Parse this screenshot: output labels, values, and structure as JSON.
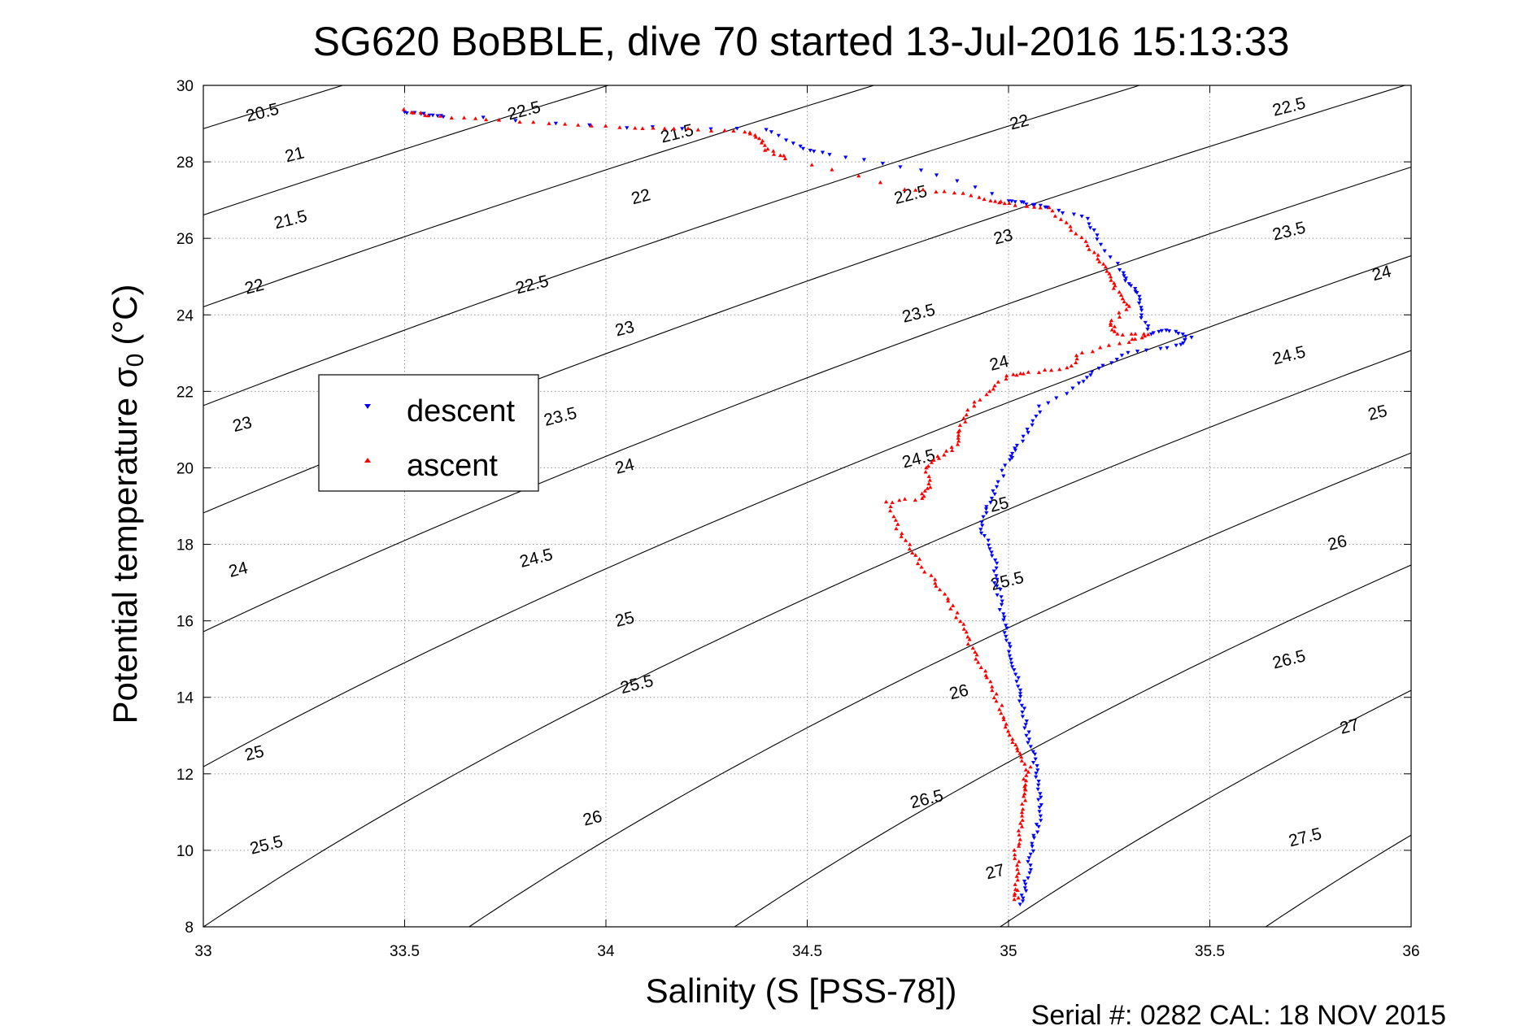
{
  "chart_data": {
    "type": "scatter",
    "title": "SG620 BoBBLE, dive 70 started 13-Jul-2016 15:13:33",
    "xlabel": "Salinity (S [PSS-78])",
    "ylabel_main": "Potential temperature σ",
    "ylabel_sub": "0",
    "ylabel_unit": "(°C)",
    "footer": "Serial #: 0282  CAL: 18 NOV 2015",
    "xlim": [
      33,
      36
    ],
    "ylim": [
      8,
      30
    ],
    "x_ticks": [
      33,
      33.5,
      34,
      34.5,
      35,
      35.5,
      36
    ],
    "x_tick_labels": [
      "33",
      "33.5",
      "34",
      "34.5",
      "35",
      "35.5",
      "36"
    ],
    "y_ticks": [
      8,
      10,
      12,
      14,
      16,
      18,
      20,
      22,
      24,
      26,
      28,
      30
    ],
    "y_tick_labels": [
      "8",
      "10",
      "12",
      "14",
      "16",
      "18",
      "20",
      "22",
      "24",
      "26",
      "28",
      "30"
    ],
    "grid": true,
    "legend_position": "left-middle",
    "density_contours": {
      "levels": [
        20.5,
        21,
        21.5,
        22,
        22.5,
        23,
        23.5,
        24,
        24.5,
        25,
        25.5,
        26,
        26.5,
        27,
        27.5
      ],
      "labels": [
        {
          "text": "20.5",
          "s": 33.15,
          "t": 29.15
        },
        {
          "text": "21",
          "s": 33.23,
          "t": 28.05
        },
        {
          "text": "21.5",
          "s": 33.22,
          "t": 26.35
        },
        {
          "text": "22",
          "s": 33.13,
          "t": 24.6
        },
        {
          "text": "22.5",
          "s": 33.8,
          "t": 29.2
        },
        {
          "text": "21.5",
          "s": 34.18,
          "t": 28.6
        },
        {
          "text": "22",
          "s": 34.09,
          "t": 26.95
        },
        {
          "text": "22.5",
          "s": 33.82,
          "t": 24.65
        },
        {
          "text": "23",
          "s": 33.1,
          "t": 21.0
        },
        {
          "text": "23",
          "s": 34.05,
          "t": 23.5
        },
        {
          "text": "23.5",
          "s": 33.89,
          "t": 21.2
        },
        {
          "text": "24",
          "s": 34.05,
          "t": 19.9
        },
        {
          "text": "24",
          "s": 33.09,
          "t": 17.2
        },
        {
          "text": "24.5",
          "s": 33.83,
          "t": 17.5
        },
        {
          "text": "25",
          "s": 34.05,
          "t": 15.9
        },
        {
          "text": "25.5",
          "s": 34.08,
          "t": 14.2
        },
        {
          "text": "25",
          "s": 33.13,
          "t": 12.4
        },
        {
          "text": "25.5",
          "s": 33.16,
          "t": 10.0
        },
        {
          "text": "26",
          "s": 33.97,
          "t": 10.7
        },
        {
          "text": "26.5",
          "s": 34.8,
          "t": 11.2
        },
        {
          "text": "27",
          "s": 34.97,
          "t": 9.3
        },
        {
          "text": "26",
          "s": 34.88,
          "t": 14.0
        },
        {
          "text": "25.5",
          "s": 35.0,
          "t": 16.9
        },
        {
          "text": "25",
          "s": 34.98,
          "t": 18.9
        },
        {
          "text": "24.5",
          "s": 34.78,
          "t": 20.1
        },
        {
          "text": "24",
          "s": 34.98,
          "t": 22.6
        },
        {
          "text": "23.5",
          "s": 34.78,
          "t": 23.9
        },
        {
          "text": "23",
          "s": 34.99,
          "t": 25.9
        },
        {
          "text": "22.5",
          "s": 34.76,
          "t": 27.0
        },
        {
          "text": "22",
          "s": 35.03,
          "t": 28.9
        },
        {
          "text": "22.5",
          "s": 35.7,
          "t": 29.3
        },
        {
          "text": "23.5",
          "s": 35.7,
          "t": 26.05
        },
        {
          "text": "24",
          "s": 35.93,
          "t": 24.95
        },
        {
          "text": "24.5",
          "s": 35.7,
          "t": 22.8
        },
        {
          "text": "25",
          "s": 35.92,
          "t": 21.3
        },
        {
          "text": "26",
          "s": 35.82,
          "t": 17.9
        },
        {
          "text": "26.5",
          "s": 35.7,
          "t": 14.85
        },
        {
          "text": "27",
          "s": 35.85,
          "t": 13.1
        },
        {
          "text": "27.5",
          "s": 35.74,
          "t": 10.2
        }
      ]
    },
    "series": [
      {
        "name": "descent",
        "color": "#0000ff",
        "marker": "triangle-down",
        "points": [
          [
            33.5,
            29.3
          ],
          [
            33.55,
            29.25
          ],
          [
            33.6,
            29.2
          ],
          [
            34.05,
            28.9
          ],
          [
            34.4,
            28.85
          ],
          [
            34.48,
            28.4
          ],
          [
            34.55,
            28.2
          ],
          [
            34.78,
            27.8
          ],
          [
            35.0,
            27.0
          ],
          [
            35.05,
            26.9
          ],
          [
            35.1,
            26.8
          ],
          [
            35.2,
            26.5
          ],
          [
            35.22,
            26.0
          ],
          [
            35.28,
            25.2
          ],
          [
            35.3,
            24.8
          ],
          [
            35.33,
            24.5
          ],
          [
            35.33,
            24.0
          ],
          [
            35.35,
            23.5
          ],
          [
            35.4,
            23.6
          ],
          [
            35.45,
            23.4
          ],
          [
            35.42,
            23.2
          ],
          [
            35.3,
            23.0
          ],
          [
            35.22,
            22.6
          ],
          [
            35.18,
            22.2
          ],
          [
            35.08,
            21.6
          ],
          [
            35.05,
            21.0
          ],
          [
            35.02,
            20.5
          ],
          [
            35.0,
            20.2
          ],
          [
            34.97,
            19.5
          ],
          [
            34.95,
            19.0
          ],
          [
            34.93,
            18.5
          ],
          [
            34.95,
            18.0
          ],
          [
            34.97,
            17.5
          ],
          [
            34.97,
            17.0
          ],
          [
            34.98,
            16.5
          ],
          [
            34.99,
            16.0
          ],
          [
            35.0,
            15.5
          ],
          [
            35.01,
            15.0
          ],
          [
            35.02,
            14.5
          ],
          [
            35.03,
            14.0
          ],
          [
            35.04,
            13.5
          ],
          [
            35.05,
            13.0
          ],
          [
            35.06,
            12.5
          ],
          [
            35.07,
            12.0
          ],
          [
            35.08,
            11.5
          ],
          [
            35.08,
            11.0
          ],
          [
            35.07,
            10.5
          ],
          [
            35.06,
            10.0
          ],
          [
            35.05,
            9.5
          ],
          [
            35.04,
            9.0
          ],
          [
            35.03,
            8.6
          ]
        ]
      },
      {
        "name": "ascent",
        "color": "#ff0000",
        "marker": "triangle-up",
        "points": [
          [
            33.5,
            29.35
          ],
          [
            33.56,
            29.2
          ],
          [
            33.7,
            29.1
          ],
          [
            33.9,
            29.0
          ],
          [
            34.07,
            28.9
          ],
          [
            34.2,
            28.85
          ],
          [
            34.35,
            28.8
          ],
          [
            34.38,
            28.6
          ],
          [
            34.4,
            28.3
          ],
          [
            34.45,
            28.1
          ],
          [
            34.74,
            27.3
          ],
          [
            34.87,
            27.2
          ],
          [
            34.96,
            27.0
          ],
          [
            35.0,
            26.9
          ],
          [
            35.1,
            26.8
          ],
          [
            35.15,
            26.3
          ],
          [
            35.2,
            25.8
          ],
          [
            35.23,
            25.4
          ],
          [
            35.25,
            25.0
          ],
          [
            35.27,
            24.6
          ],
          [
            35.3,
            24.2
          ],
          [
            35.25,
            23.8
          ],
          [
            35.27,
            23.5
          ],
          [
            35.35,
            23.5
          ],
          [
            35.3,
            23.3
          ],
          [
            35.18,
            23.0
          ],
          [
            35.15,
            22.6
          ],
          [
            35.05,
            22.5
          ],
          [
            35.0,
            22.4
          ],
          [
            34.95,
            22.0
          ],
          [
            34.9,
            21.5
          ],
          [
            34.88,
            21.0
          ],
          [
            34.87,
            20.6
          ],
          [
            34.83,
            20.3
          ],
          [
            34.8,
            20.0
          ],
          [
            34.8,
            19.5
          ],
          [
            34.78,
            19.2
          ],
          [
            34.7,
            19.1
          ],
          [
            34.72,
            18.5
          ],
          [
            34.75,
            18.0
          ],
          [
            34.78,
            17.5
          ],
          [
            34.82,
            17.0
          ],
          [
            34.85,
            16.5
          ],
          [
            34.88,
            16.0
          ],
          [
            34.9,
            15.5
          ],
          [
            34.92,
            15.0
          ],
          [
            34.95,
            14.5
          ],
          [
            34.97,
            14.0
          ],
          [
            34.99,
            13.5
          ],
          [
            35.0,
            13.0
          ],
          [
            35.02,
            12.6
          ],
          [
            35.05,
            12.2
          ],
          [
            35.04,
            11.8
          ],
          [
            35.04,
            11.5
          ],
          [
            35.03,
            11.0
          ],
          [
            35.03,
            10.5
          ],
          [
            35.02,
            10.0
          ],
          [
            35.02,
            9.5
          ],
          [
            35.02,
            9.0
          ],
          [
            35.02,
            8.7
          ]
        ]
      }
    ]
  }
}
